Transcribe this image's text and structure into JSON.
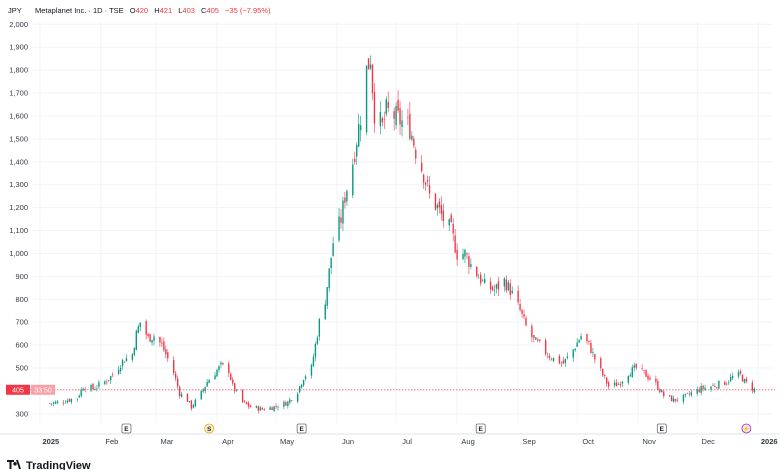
{
  "header": {
    "currency": "JPY",
    "symbol": "Metaplanet Inc. · 1D · TSE",
    "open_label": "O",
    "open": "420",
    "high_label": "H",
    "high": "421",
    "low_label": "L",
    "low": "403",
    "close_label": "C",
    "close": "405",
    "change": "−35 (−7.95%)"
  },
  "price_badge": {
    "price": "405",
    "countdown": "33:50"
  },
  "events": [
    {
      "date": "2025-02-14",
      "kind": "earnings",
      "label": "E"
    },
    {
      "date": "2025-03-28",
      "kind": "dividend",
      "label": "S"
    },
    {
      "date": "2025-05-14",
      "kind": "earnings",
      "label": "E"
    },
    {
      "date": "2025-08-13",
      "kind": "earnings",
      "label": "E"
    },
    {
      "date": "2025-11-13",
      "kind": "earnings",
      "label": "E"
    },
    {
      "date": "2025-12-26",
      "kind": "split",
      "label": "⚡"
    }
  ],
  "branding": {
    "name": "TradingView"
  },
  "colors": {
    "up": "#089981",
    "down": "#f23645",
    "grid": "#f0f3fa",
    "axis": "#333a45"
  },
  "chart_data": {
    "type": "candlestick",
    "interval": "1D",
    "ylim": [
      260,
      2010
    ],
    "yticks": [
      300,
      400,
      500,
      600,
      700,
      800,
      900,
      1000,
      1100,
      1200,
      1300,
      1400,
      1500,
      1600,
      1700,
      1800,
      1900,
      2000
    ],
    "ytick_labels": [
      "300",
      "400",
      "500",
      "600",
      "700",
      "800",
      "900",
      "1,000",
      "1,100",
      "1,200",
      "1,300",
      "1,400",
      "1,500",
      "1,600",
      "1,700",
      "1,800",
      "1,900",
      "2,000"
    ],
    "xlim": [
      "2024-12-28",
      "2026-01-08"
    ],
    "xticks": [
      {
        "date": "2025-01-01",
        "label": "2025",
        "bold": true
      },
      {
        "date": "2025-02-01",
        "label": "Feb"
      },
      {
        "date": "2025-03-01",
        "label": "Mar"
      },
      {
        "date": "2025-04-01",
        "label": "Apr"
      },
      {
        "date": "2025-05-01",
        "label": "May"
      },
      {
        "date": "2025-06-01",
        "label": "Jun"
      },
      {
        "date": "2025-07-01",
        "label": "Jul"
      },
      {
        "date": "2025-08-01",
        "label": "Aug"
      },
      {
        "date": "2025-09-01",
        "label": "Sep"
      },
      {
        "date": "2025-10-01",
        "label": "Oct"
      },
      {
        "date": "2025-11-01",
        "label": "Nov"
      },
      {
        "date": "2025-12-01",
        "label": "Dec"
      },
      {
        "date": "2026-01-01",
        "label": "2026",
        "bold": true
      }
    ],
    "close_series": [
      [
        "2025-01-06",
        345
      ],
      [
        "2025-01-10",
        350
      ],
      [
        "2025-01-15",
        360
      ],
      [
        "2025-01-20",
        370
      ],
      [
        "2025-01-23",
        420
      ],
      [
        "2025-01-28",
        410
      ],
      [
        "2025-02-03",
        440
      ],
      [
        "2025-02-07",
        470
      ],
      [
        "2025-02-12",
        530
      ],
      [
        "2025-02-17",
        560
      ],
      [
        "2025-02-19",
        650
      ],
      [
        "2025-02-21",
        700
      ],
      [
        "2025-02-25",
        630
      ],
      [
        "2025-02-28",
        640
      ],
      [
        "2025-03-04",
        600
      ],
      [
        "2025-03-06",
        560
      ],
      [
        "2025-03-10",
        480
      ],
      [
        "2025-03-13",
        390
      ],
      [
        "2025-03-17",
        360
      ],
      [
        "2025-03-19",
        330
      ],
      [
        "2025-03-24",
        390
      ],
      [
        "2025-03-27",
        440
      ],
      [
        "2025-04-01",
        490
      ],
      [
        "2025-04-03",
        510
      ],
      [
        "2025-04-07",
        490
      ],
      [
        "2025-04-09",
        420
      ],
      [
        "2025-04-14",
        350
      ],
      [
        "2025-04-18",
        330
      ],
      [
        "2025-04-24",
        320
      ],
      [
        "2025-04-30",
        330
      ],
      [
        "2025-05-07",
        350
      ],
      [
        "2025-05-12",
        400
      ],
      [
        "2025-05-15",
        460
      ],
      [
        "2025-05-19",
        500
      ],
      [
        "2025-05-21",
        600
      ],
      [
        "2025-05-23",
        700
      ],
      [
        "2025-05-26",
        800
      ],
      [
        "2025-05-28",
        920
      ],
      [
        "2025-05-30",
        1050
      ],
      [
        "2025-06-03",
        1150
      ],
      [
        "2025-06-05",
        1250
      ],
      [
        "2025-06-09",
        1400
      ],
      [
        "2025-06-11",
        1500
      ],
      [
        "2025-06-13",
        1600
      ],
      [
        "2025-06-16",
        1800
      ],
      [
        "2025-06-18",
        1860
      ],
      [
        "2025-06-19",
        1730
      ],
      [
        "2025-06-20",
        1620
      ],
      [
        "2025-06-24",
        1550
      ],
      [
        "2025-06-26",
        1620
      ],
      [
        "2025-06-30",
        1600
      ],
      [
        "2025-07-03",
        1580
      ],
      [
        "2025-07-08",
        1550
      ],
      [
        "2025-07-11",
        1450
      ],
      [
        "2025-07-15",
        1350
      ],
      [
        "2025-07-18",
        1250
      ],
      [
        "2025-07-22",
        1200
      ],
      [
        "2025-07-25",
        1150
      ],
      [
        "2025-07-29",
        1100
      ],
      [
        "2025-08-01",
        1000
      ],
      [
        "2025-08-05",
        1000
      ],
      [
        "2025-08-08",
        950
      ],
      [
        "2025-08-12",
        900
      ],
      [
        "2025-08-15",
        860
      ],
      [
        "2025-08-20",
        840
      ],
      [
        "2025-08-25",
        880
      ],
      [
        "2025-08-28",
        840
      ],
      [
        "2025-09-02",
        750
      ],
      [
        "2025-09-05",
        680
      ],
      [
        "2025-09-09",
        620
      ],
      [
        "2025-09-12",
        600
      ],
      [
        "2025-09-16",
        560
      ],
      [
        "2025-09-19",
        540
      ],
      [
        "2025-09-24",
        520
      ],
      [
        "2025-09-29",
        580
      ],
      [
        "2025-10-03",
        640
      ],
      [
        "2025-10-07",
        600
      ],
      [
        "2025-10-10",
        540
      ],
      [
        "2025-10-14",
        470
      ],
      [
        "2025-10-17",
        420
      ],
      [
        "2025-10-22",
        430
      ],
      [
        "2025-10-27",
        480
      ],
      [
        "2025-10-31",
        500
      ],
      [
        "2025-11-05",
        470
      ],
      [
        "2025-11-10",
        430
      ],
      [
        "2025-11-14",
        380
      ],
      [
        "2025-11-19",
        360
      ],
      [
        "2025-11-24",
        370
      ],
      [
        "2025-11-28",
        390
      ],
      [
        "2025-12-03",
        410
      ],
      [
        "2025-12-08",
        420
      ],
      [
        "2025-12-12",
        430
      ],
      [
        "2025-12-16",
        440
      ],
      [
        "2025-12-19",
        460
      ],
      [
        "2025-12-23",
        470
      ],
      [
        "2025-12-25",
        440
      ],
      [
        "2025-12-30",
        405
      ]
    ]
  }
}
